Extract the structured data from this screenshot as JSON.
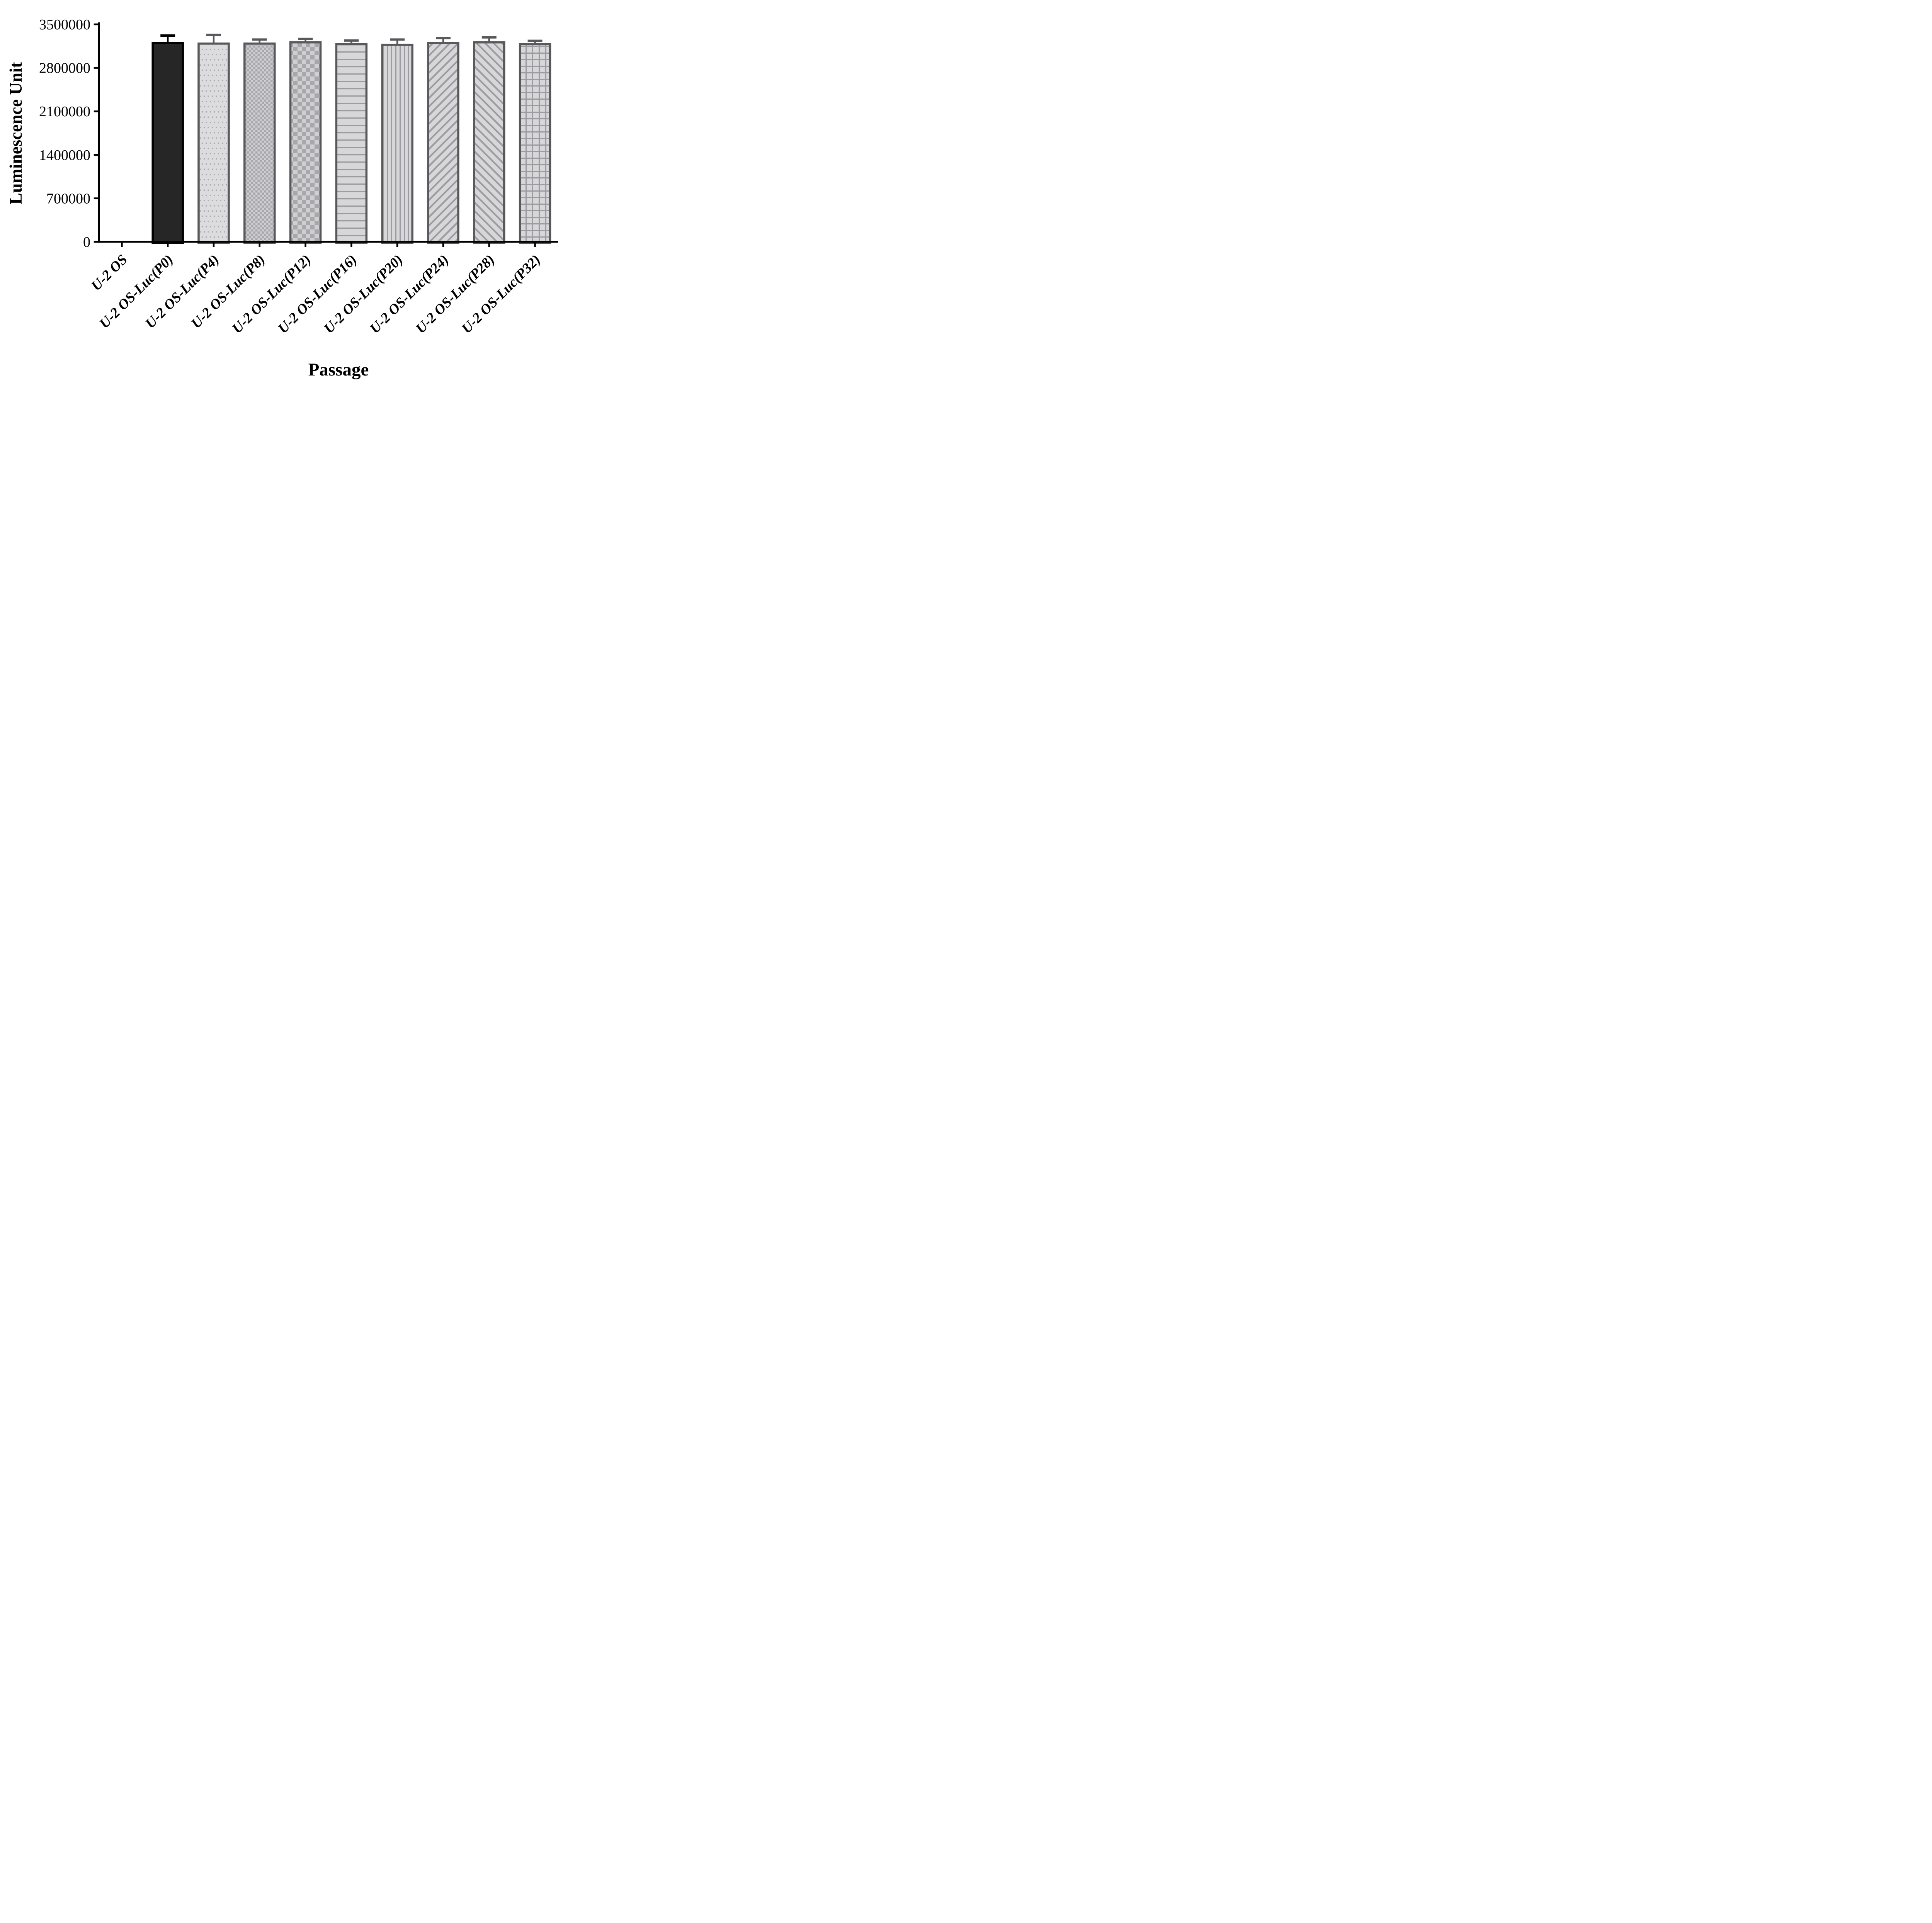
{
  "chart_data": {
    "type": "bar",
    "title": "",
    "xlabel": "Passage",
    "ylabel": "Luminescence Unit",
    "ylim": [
      0,
      3500000
    ],
    "yticks": [
      0,
      700000,
      1400000,
      2100000,
      2800000,
      3500000
    ],
    "ytick_labels": [
      "0",
      "700000",
      "1400000",
      "2100000",
      "2800000",
      "3500000"
    ],
    "grid": false,
    "legend": "none",
    "x_tick_label_rotation_deg": 45,
    "categories": [
      "U-2 OS",
      "U-2 OS-Luc(P0)",
      "U-2 OS-Luc(P4)",
      "U-2 OS-Luc(P8)",
      "U-2 OS-Luc(P12)",
      "U-2 OS-Luc(P16)",
      "U-2 OS-Luc(P20)",
      "U-2 OS-Luc(P24)",
      "U-2 OS-Luc(P28)",
      "U-2 OS-Luc(P32)"
    ],
    "values": [
      0,
      3200000,
      3190000,
      3190000,
      3210000,
      3180000,
      3170000,
      3200000,
      3210000,
      3180000
    ],
    "errors": [
      0,
      120000,
      140000,
      65000,
      55000,
      60000,
      85000,
      80000,
      80000,
      55000
    ],
    "error_style": "upper-sd-with-cap",
    "bar_patterns": [
      "none",
      "solid",
      "dots",
      "checker-small",
      "checker-large",
      "hlines",
      "vlines",
      "diag-up",
      "diag-down",
      "grid"
    ]
  },
  "styles": {
    "background": "#ffffff",
    "axis_color": "#000000",
    "bar_stroke": "#59595b",
    "error_color": "#59595b",
    "first_bar_fill": "#262626",
    "first_bar_stroke": "#000000",
    "first_bar_error": "#000000",
    "pattern_bg": "#d7d7d9",
    "pattern_fg": "#9b9ba1",
    "dots_bg": "#dcdcde",
    "dots_fg": "#ababaf",
    "checker_bg": "#cfcfd2",
    "checker_fg": "#a7a7ac"
  }
}
